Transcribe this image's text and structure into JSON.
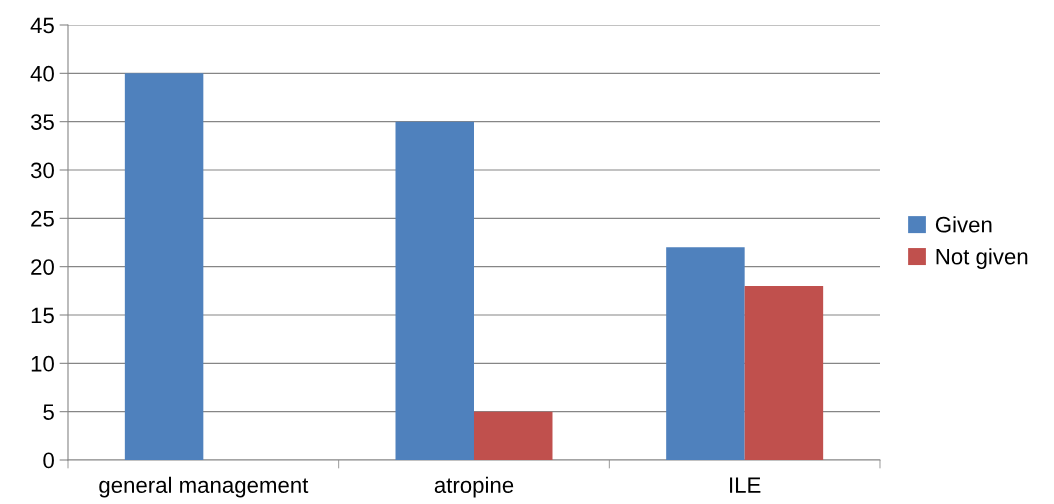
{
  "chart_data": {
    "type": "bar",
    "categories": [
      "general management",
      "atropine",
      "ILE"
    ],
    "series": [
      {
        "name": "Given",
        "color": "#4f81bd",
        "values": [
          40,
          35,
          22
        ]
      },
      {
        "name": "Not given",
        "color": "#c0504d",
        "values": [
          0,
          5,
          18
        ]
      }
    ],
    "ylim": [
      0,
      45
    ],
    "yticks": [
      0,
      5,
      10,
      15,
      20,
      25,
      30,
      35,
      40,
      45
    ],
    "grid": "y",
    "legend": "right"
  }
}
